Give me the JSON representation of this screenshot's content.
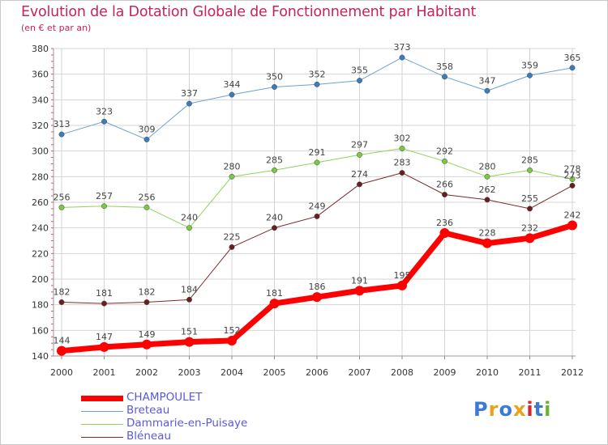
{
  "title": "Evolution de la Dotation Globale de Fonctionnement par Habitant",
  "subtitle": "(en € et par an)",
  "logo": {
    "text": "Proxiti",
    "colors": [
      "#3a7bd5",
      "#e8a21c",
      "#3a7bd5",
      "#e8a21c",
      "#d6262c",
      "#3a7bd5",
      "#6ab42d"
    ]
  },
  "chart_data": {
    "type": "line",
    "categories": [
      "2000",
      "2001",
      "2002",
      "2003",
      "2004",
      "2005",
      "2006",
      "2007",
      "2008",
      "2009",
      "2010",
      "2011",
      "2012"
    ],
    "ylim": [
      140,
      380
    ],
    "yticks": [
      "140",
      "160",
      "180",
      "200",
      "220",
      "240",
      "260",
      "280",
      "300",
      "320",
      "340",
      "360",
      "380"
    ],
    "grid": true,
    "legend_position": "bottom-left",
    "series": [
      {
        "name": "CHAMPOULET",
        "color": "#ff0000",
        "marker": "#ff0000",
        "width": 7,
        "values": [
          144,
          147,
          149,
          151,
          152,
          181,
          186,
          191,
          195,
          236,
          228,
          232,
          242
        ]
      },
      {
        "name": "Breteau",
        "color": "#6fa0d0",
        "marker": "#3b7cc0",
        "width": 1,
        "values": [
          313,
          323,
          309,
          337,
          344,
          350,
          352,
          355,
          373,
          358,
          347,
          359,
          365
        ]
      },
      {
        "name": "Dammarie-en-Puisaye",
        "color": "#8fd35a",
        "marker": "#7ac943",
        "width": 1,
        "values": [
          256,
          257,
          256,
          240,
          280,
          285,
          291,
          297,
          302,
          292,
          280,
          285,
          278
        ]
      },
      {
        "name": "Bléneau",
        "color": "#7a2a2a",
        "marker": "#6a1e1e",
        "width": 1,
        "values": [
          182,
          181,
          182,
          184,
          225,
          240,
          249,
          274,
          283,
          266,
          262,
          255,
          273
        ]
      }
    ]
  }
}
